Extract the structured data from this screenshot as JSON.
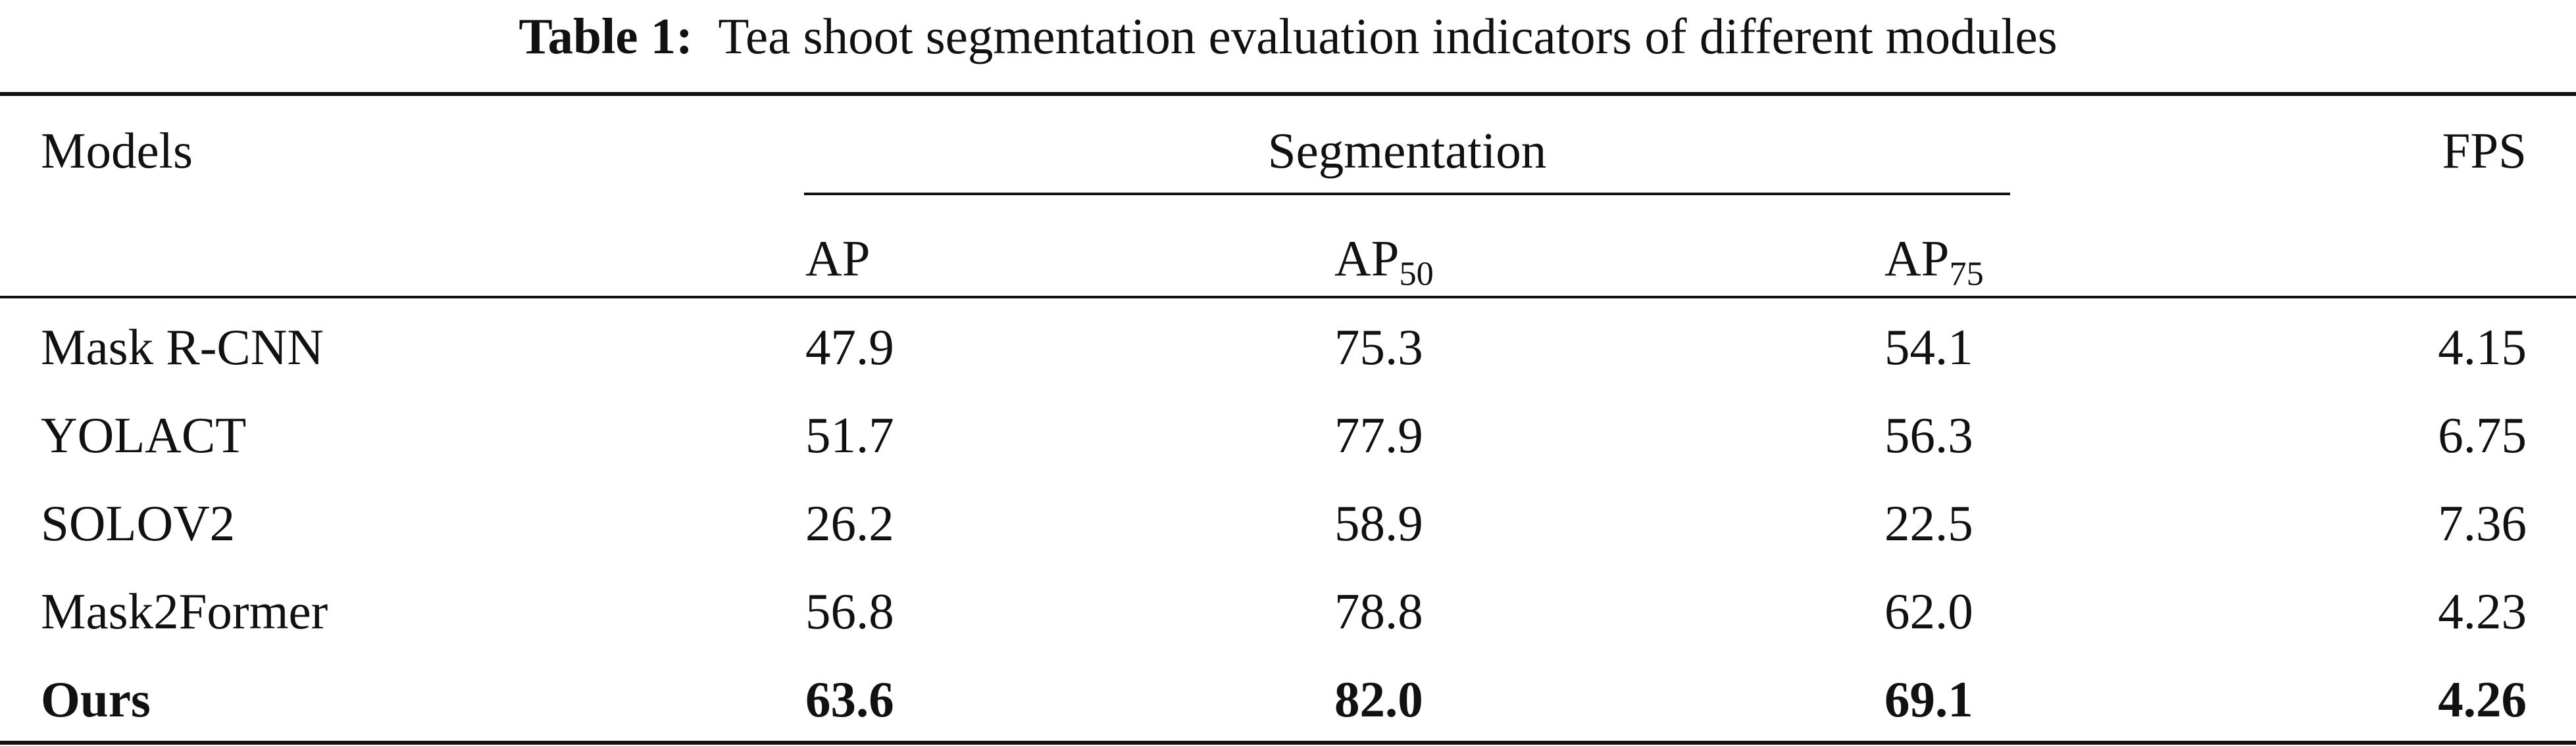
{
  "table": {
    "caption_label": "Table 1:",
    "caption_text": "Tea shoot segmentation evaluation indicators of different modules",
    "header": {
      "models": "Models",
      "group": "Segmentation",
      "fps": "FPS",
      "ap": "AP",
      "ap50": {
        "base": "AP",
        "sub": "50"
      },
      "ap75": {
        "base": "AP",
        "sub": "75"
      }
    },
    "rows": [
      {
        "model": "Mask R-CNN",
        "ap": "47.9",
        "ap50": "75.3",
        "ap75": "54.1",
        "fps": "4.15",
        "bold": false
      },
      {
        "model": "YOLACT",
        "ap": "51.7",
        "ap50": "77.9",
        "ap75": "56.3",
        "fps": "6.75",
        "bold": false
      },
      {
        "model": "SOLOV2",
        "ap": "26.2",
        "ap50": "58.9",
        "ap75": "22.5",
        "fps": "7.36",
        "bold": false
      },
      {
        "model": "Mask2Former",
        "ap": "56.8",
        "ap50": "78.8",
        "ap75": "62.0",
        "fps": "4.23",
        "bold": false
      },
      {
        "model": "Ours",
        "ap": "63.6",
        "ap50": "82.0",
        "ap75": "69.1",
        "fps": "4.26",
        "bold": true
      }
    ]
  }
}
